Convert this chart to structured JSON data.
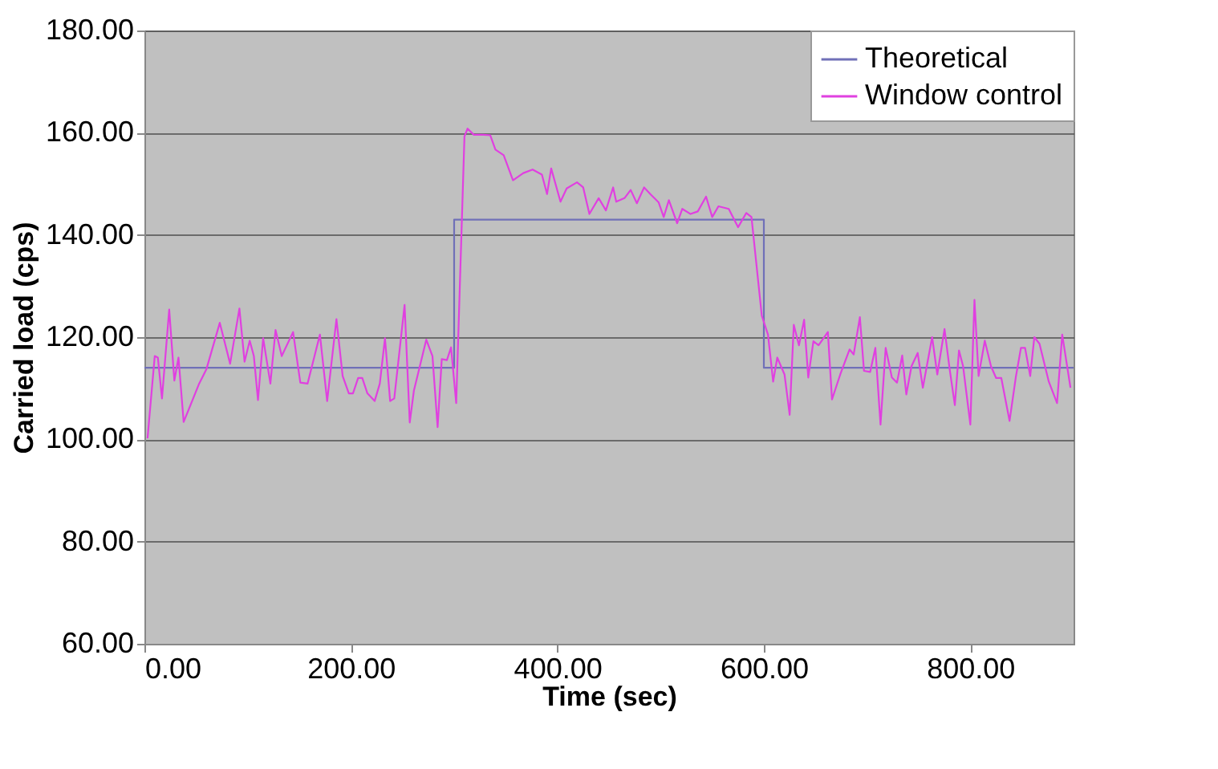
{
  "chart_data": {
    "type": "line",
    "xlabel": "Time (sec)",
    "ylabel": "Carried load (cps)",
    "xlim": [
      0,
      900
    ],
    "ylim": [
      60,
      180
    ],
    "xticks": [
      {
        "value": 0,
        "label": "0.00"
      },
      {
        "value": 200,
        "label": "200.00"
      },
      {
        "value": 400,
        "label": "400.00"
      },
      {
        "value": 600,
        "label": "600.00"
      },
      {
        "value": 800,
        "label": "800.00"
      }
    ],
    "yticks": [
      {
        "value": 60,
        "label": "60.00"
      },
      {
        "value": 80,
        "label": "80.00"
      },
      {
        "value": 100,
        "label": "100.00"
      },
      {
        "value": 120,
        "label": "120.00"
      },
      {
        "value": 140,
        "label": "140.00"
      },
      {
        "value": 160,
        "label": "160.00"
      },
      {
        "value": 180,
        "label": "180.00"
      }
    ],
    "grid": "y",
    "legend": "top right",
    "line_style": "solid",
    "marker": "none",
    "series": [
      {
        "name": "Theoretical",
        "color": "#7070b8",
        "x": [
          0,
          300,
          300,
          600,
          600,
          900
        ],
        "values": [
          114,
          114,
          143,
          143,
          114,
          114
        ]
      },
      {
        "name": "Window control",
        "color": "#e040e0",
        "x": [
          3,
          10,
          13,
          17,
          24,
          29,
          33,
          38,
          53,
          60,
          73,
          83,
          92,
          97,
          102,
          106,
          110,
          115,
          122,
          127,
          133,
          144,
          151,
          158,
          170,
          177,
          186,
          192,
          198,
          202,
          207,
          211,
          216,
          223,
          228,
          233,
          238,
          242,
          252,
          257,
          261,
          273,
          279,
          284,
          288,
          293,
          297,
          302,
          310,
          313,
          319,
          328,
          335,
          340,
          348,
          357,
          367,
          376,
          385,
          390,
          394,
          403,
          409,
          419,
          425,
          431,
          440,
          447,
          454,
          457,
          465,
          471,
          477,
          484,
          490,
          498,
          503,
          508,
          516,
          521,
          529,
          536,
          544,
          550,
          556,
          566,
          575,
          583,
          588,
          598,
          604,
          609,
          613,
          620,
          625,
          629,
          634,
          639,
          643,
          648,
          653,
          662,
          666,
          674,
          683,
          687,
          693,
          697,
          703,
          708,
          713,
          718,
          724,
          729,
          734,
          738,
          743,
          749,
          754,
          763,
          768,
          775,
          780,
          785,
          789,
          793,
          800,
          804,
          808,
          814,
          820,
          825,
          830,
          838,
          844,
          849,
          853,
          858,
          862,
          867,
          876,
          884,
          889,
          897
        ],
        "values": [
          100.2,
          116.3,
          116,
          108,
          125.4,
          111.5,
          116,
          103.4,
          110.9,
          113.7,
          122.8,
          114.8,
          125.6,
          115.2,
          119.3,
          116.3,
          107.7,
          119.8,
          110.9,
          121.4,
          116.3,
          121,
          111.1,
          110.9,
          120.5,
          107.5,
          123.5,
          112.4,
          109,
          109,
          112,
          112,
          109,
          107.5,
          110.9,
          119.8,
          107.5,
          108,
          126.3,
          103.3,
          109.5,
          119.5,
          116.3,
          102.4,
          115.7,
          115.5,
          118,
          107.1,
          159.3,
          160.8,
          159.6,
          159.6,
          159.5,
          156.7,
          155.6,
          150.7,
          152.1,
          152.8,
          151.8,
          148,
          153,
          146.5,
          149.1,
          150.3,
          149.3,
          144.1,
          147.2,
          144.8,
          149.3,
          146.5,
          147.2,
          148.8,
          146.2,
          149.3,
          148,
          146.4,
          143.5,
          146.8,
          142.3,
          145.1,
          144.1,
          144.6,
          147.5,
          143.5,
          145.6,
          145.1,
          141.5,
          144.3,
          143.5,
          124.2,
          120.5,
          111.3,
          116,
          112.7,
          104.8,
          122.4,
          118.4,
          123.4,
          112.1,
          119.2,
          118.4,
          121,
          107.8,
          112.7,
          117.6,
          116.6,
          123.9,
          113.4,
          113.2,
          117.9,
          102.9,
          117.9,
          112.1,
          111.1,
          116.4,
          108.8,
          114.3,
          116.9,
          110.1,
          120,
          112.7,
          121.6,
          113.7,
          106.7,
          117.4,
          114.3,
          102.9,
          127.3,
          112.4,
          119.3,
          114.3,
          112,
          112,
          103.6,
          112.1,
          117.9,
          117.9,
          112.4,
          120,
          118.7,
          111.3,
          107.1,
          120.5,
          110.1
        ]
      }
    ]
  }
}
